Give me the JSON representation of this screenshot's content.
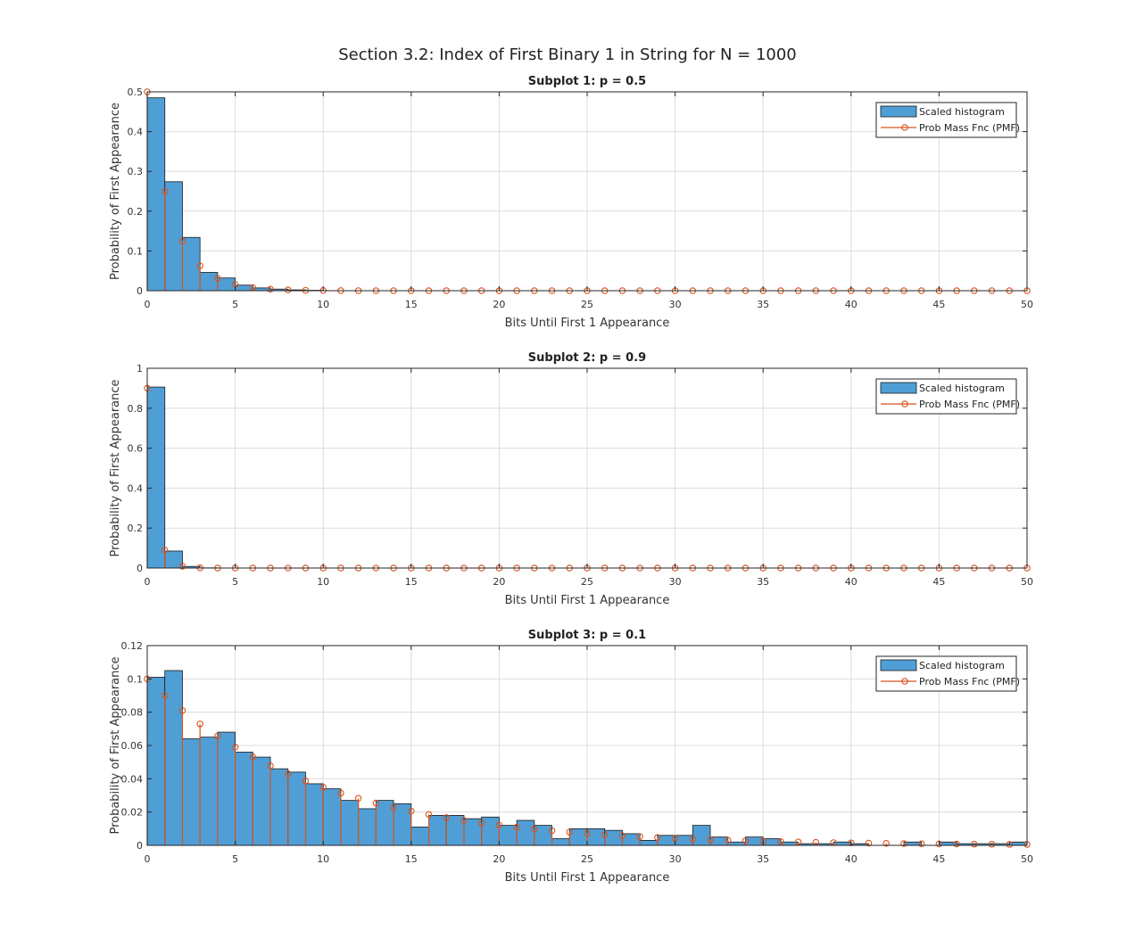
{
  "figure_title": "Section 3.2: Index of First Binary 1 in String for N = 1000",
  "colors": {
    "bar": "#4F9FD6",
    "bar_edge": "#1a1a1a",
    "pmf": "#D9531E",
    "grid": "#dcdcdc",
    "axis": "#262626"
  },
  "chart_data": [
    {
      "type": "bar",
      "title": "Subplot 1: p = 0.5",
      "xlabel": "Bits Until First 1 Appearance",
      "ylabel": "Probability of First Appearance",
      "xlim": [
        0,
        50
      ],
      "ylim": [
        0,
        0.5
      ],
      "xticks": [
        "0",
        "5",
        "10",
        "15",
        "20",
        "25",
        "30",
        "35",
        "40",
        "45",
        "50"
      ],
      "yticks": [
        "0",
        "0.1",
        "0.2",
        "0.3",
        "0.4",
        "0.5"
      ],
      "grid": true,
      "legend_position": "top-right",
      "legend": [
        "Scaled histogram",
        "Prob Mass Fnc (PMF)"
      ],
      "histogram": [
        0.485,
        0.274,
        0.134,
        0.046,
        0.032,
        0.014,
        0.007,
        0.004,
        0.002,
        0.001
      ],
      "pmf": [
        0.5,
        0.25,
        0.125,
        0.0625,
        0.03125,
        0.015625,
        0.0078125,
        0.00390625,
        0.00195313,
        0.00097656,
        0.00048828,
        0.00024414,
        0.00012207,
        6.104e-05,
        3.052e-05,
        1.526e-05,
        7.63e-06,
        3.81e-06,
        1.91e-06,
        9.5e-07,
        4.8e-07,
        2.4e-07,
        1.2e-07,
        6e-08,
        3e-08,
        1e-08,
        0,
        0,
        0,
        0,
        0,
        0,
        0,
        0,
        0,
        0,
        0,
        0,
        0,
        0,
        0,
        0,
        0,
        0,
        0,
        0,
        0,
        0,
        0,
        0,
        0
      ]
    },
    {
      "type": "bar",
      "title": "Subplot 2: p = 0.9",
      "xlabel": "Bits Until First 1 Appearance",
      "ylabel": "Probability of First Appearance",
      "xlim": [
        0,
        50
      ],
      "ylim": [
        0,
        1
      ],
      "xticks": [
        "0",
        "5",
        "10",
        "15",
        "20",
        "25",
        "30",
        "35",
        "40",
        "45",
        "50"
      ],
      "yticks": [
        "0",
        "0.2",
        "0.4",
        "0.6",
        "0.8",
        "1"
      ],
      "grid": true,
      "legend_position": "top-right",
      "legend": [
        "Scaled histogram",
        "Prob Mass Fnc (PMF)"
      ],
      "histogram": [
        0.906,
        0.085,
        0.008,
        0.001
      ],
      "pmf": [
        0.9,
        0.09,
        0.009,
        0.0009,
        9e-05,
        9e-06,
        9e-07,
        9e-08,
        9e-09,
        0,
        0,
        0,
        0,
        0,
        0,
        0,
        0,
        0,
        0,
        0,
        0,
        0,
        0,
        0,
        0,
        0,
        0,
        0,
        0,
        0,
        0,
        0,
        0,
        0,
        0,
        0,
        0,
        0,
        0,
        0,
        0,
        0,
        0,
        0,
        0,
        0,
        0,
        0,
        0,
        0,
        0
      ]
    },
    {
      "type": "bar",
      "title": "Subplot 3: p = 0.1",
      "xlabel": "Bits Until First 1 Appearance",
      "ylabel": "Probability of First Appearance",
      "xlim": [
        0,
        50
      ],
      "ylim": [
        0,
        0.12
      ],
      "xticks": [
        "0",
        "5",
        "10",
        "15",
        "20",
        "25",
        "30",
        "35",
        "40",
        "45",
        "50"
      ],
      "yticks": [
        "0",
        "0.02",
        "0.04",
        "0.06",
        "0.08",
        "0.1",
        "0.12"
      ],
      "grid": true,
      "legend_position": "top-right",
      "legend": [
        "Scaled histogram",
        "Prob Mass Fnc (PMF)"
      ],
      "histogram": [
        0.101,
        0.105,
        0.064,
        0.065,
        0.068,
        0.056,
        0.053,
        0.046,
        0.044,
        0.037,
        0.034,
        0.027,
        0.022,
        0.027,
        0.025,
        0.011,
        0.018,
        0.018,
        0.016,
        0.017,
        0.012,
        0.015,
        0.012,
        0.004,
        0.01,
        0.01,
        0.009,
        0.007,
        0.003,
        0.006,
        0.006,
        0.012,
        0.005,
        0.002,
        0.005,
        0.004,
        0.002,
        0.001,
        0.001,
        0.002,
        0.001,
        0,
        0,
        0.002,
        0,
        0.002,
        0.001,
        0.001,
        0.001,
        0.002
      ],
      "pmf": [
        0.1,
        0.09,
        0.081,
        0.0729,
        0.06561,
        0.05905,
        0.05314,
        0.04783,
        0.04305,
        0.03874,
        0.03487,
        0.03138,
        0.02824,
        0.02542,
        0.02288,
        0.02059,
        0.01853,
        0.01668,
        0.01501,
        0.01351,
        0.01216,
        0.01094,
        0.00985,
        0.00886,
        0.00798,
        0.00718,
        0.00646,
        0.00582,
        0.00523,
        0.00471,
        0.00424,
        0.00382,
        0.00343,
        0.00309,
        0.00278,
        0.0025,
        0.00225,
        0.00203,
        0.00182,
        0.00164,
        0.00148,
        0.00133,
        0.0012,
        0.00108,
        0.00097,
        0.00087,
        0.00079,
        0.00071,
        0.00064,
        0.00057,
        0.00052
      ]
    }
  ]
}
